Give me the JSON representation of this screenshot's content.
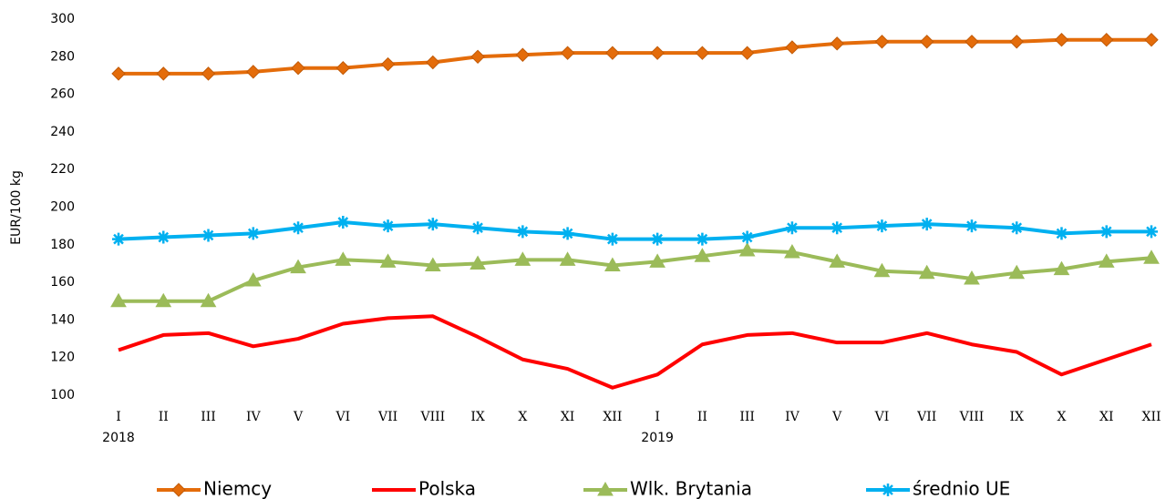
{
  "chart_data": {
    "type": "line",
    "y_label": "EUR/100  kg",
    "categories": [
      "I",
      "II",
      "III",
      "IV",
      "V",
      "VI",
      "VII",
      "VIII",
      "IX",
      "X",
      "XI",
      "XII",
      "I",
      "II",
      "III",
      "IV",
      "V",
      "VI",
      "VII",
      "VIII",
      "IX",
      "X",
      "XI",
      "XII"
    ],
    "year_labels": [
      "2018",
      null,
      null,
      null,
      null,
      null,
      null,
      null,
      null,
      null,
      null,
      null,
      "2019",
      null,
      null,
      null,
      null,
      null,
      null,
      null,
      null,
      null,
      null,
      null
    ],
    "ylim": [
      100,
      300
    ],
    "yticks": [
      100,
      120,
      140,
      160,
      180,
      200,
      220,
      240,
      260,
      280,
      300
    ],
    "legend": "bottom",
    "series": [
      {
        "name": "Niemcy",
        "color": "#e46c0a",
        "marker": "diamond",
        "values": [
          271,
          271,
          271,
          272,
          274,
          274,
          276,
          277,
          280,
          281,
          282,
          282,
          282,
          282,
          282,
          285,
          287,
          288,
          288,
          288,
          288,
          289,
          289,
          289
        ]
      },
      {
        "name": "Polska",
        "color": "#ff0000",
        "marker": "none",
        "values": [
          124,
          132,
          133,
          126,
          130,
          138,
          141,
          142,
          131,
          119,
          114,
          104,
          111,
          127,
          132,
          133,
          128,
          128,
          133,
          127,
          123,
          111,
          119,
          127
        ]
      },
      {
        "name": "Wlk. Brytania",
        "color": "#9bbb59",
        "marker": "triangle",
        "values": [
          150,
          150,
          150,
          161,
          168,
          172,
          171,
          169,
          170,
          172,
          172,
          169,
          171,
          174,
          177,
          176,
          171,
          166,
          165,
          162,
          165,
          167,
          171,
          173
        ]
      },
      {
        "name": "średnio UE",
        "color": "#00b0f0",
        "marker": "star",
        "values": [
          183,
          184,
          185,
          186,
          189,
          192,
          190,
          191,
          189,
          187,
          186,
          183,
          183,
          183,
          184,
          189,
          189,
          190,
          191,
          190,
          189,
          186,
          187,
          187
        ]
      }
    ]
  }
}
